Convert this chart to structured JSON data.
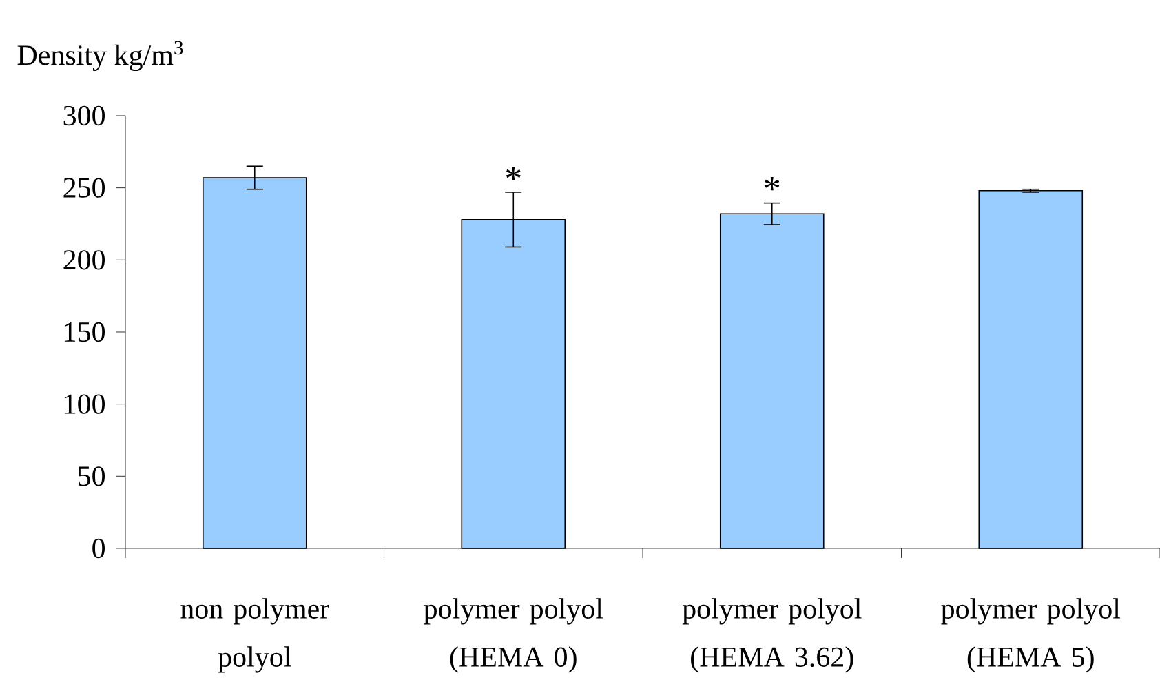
{
  "chart_data": {
    "type": "bar",
    "ylabel": "Density kg/m$^{3}$",
    "categories": [
      "non polymer polyol",
      "polymer polyol (HEMA 0)",
      "polymer polyol (HEMA 3.62)",
      "polymer polyol (HEMA 5)"
    ],
    "values": [
      257,
      228,
      232,
      248
    ],
    "errors": [
      8,
      19,
      7.5,
      1
    ],
    "color": "#99ccff",
    "ylim": [
      0,
      300
    ],
    "yticks": [
      0,
      50,
      100,
      150,
      200,
      250,
      300
    ],
    "annotations": [
      {
        "text": "*",
        "x": "polymer polyol (HEMA 0)",
        "y": 247
      },
      {
        "text": "*",
        "x": "polymer polyol (HEMA 3.62)",
        "y": 240
      }
    ]
  }
}
